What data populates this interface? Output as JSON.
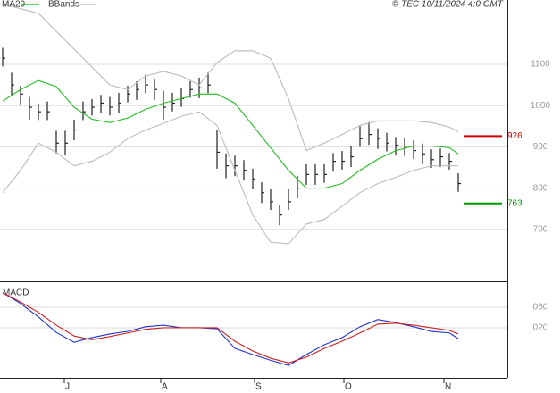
{
  "chart_data": [
    {
      "type": "ohlc",
      "source": "© TEC 10/11/2024 4:0 GMT",
      "x": [
        0,
        1,
        2,
        3,
        4,
        5,
        6,
        7,
        8,
        9,
        10,
        11,
        12,
        13,
        14,
        15,
        16,
        17,
        18,
        19,
        20,
        21,
        22,
        23,
        24,
        25,
        26,
        27,
        28,
        29,
        30,
        31,
        32,
        33,
        34,
        35,
        36,
        37,
        38,
        39,
        40,
        41,
        42,
        43,
        44,
        45,
        46,
        47,
        48,
        49,
        50,
        51
      ],
      "high": [
        1140,
        1080,
        1048,
        1021,
        1005,
        1010,
        939,
        939,
        966,
        1010,
        1016,
        1026,
        1021,
        1031,
        1048,
        1059,
        1075,
        1064,
        1036,
        1031,
        1042,
        1059,
        1068,
        1080,
        942,
        884,
        879,
        868,
        847,
        814,
        797,
        760,
        797,
        830,
        858,
        858,
        858,
        885,
        890,
        901,
        950,
        960,
        945,
        934,
        924,
        923,
        916,
        908,
        894,
        896,
        885,
        836
      ],
      "low": [
        1095,
        1025,
        1003,
        966,
        965,
        965,
        884,
        879,
        916,
        965,
        976,
        981,
        976,
        981,
        1008,
        1014,
        1030,
        1014,
        966,
        986,
        997,
        1019,
        1018,
        1030,
        847,
        824,
        829,
        818,
        797,
        764,
        747,
        710,
        747,
        775,
        808,
        808,
        813,
        840,
        845,
        851,
        900,
        905,
        895,
        889,
        879,
        878,
        871,
        858,
        849,
        851,
        845,
        791
      ],
      "close": [
        1115,
        1050,
        1028,
        996,
        985,
        985,
        909,
        909,
        941,
        985,
        996,
        1006,
        996,
        1006,
        1028,
        1039,
        1050,
        1039,
        996,
        1006,
        1017,
        1039,
        1043,
        1050,
        887,
        854,
        854,
        843,
        822,
        789,
        767,
        735,
        767,
        800,
        833,
        833,
        833,
        865,
        865,
        876,
        920,
        930,
        920,
        909,
        904,
        898,
        891,
        883,
        869,
        876,
        865,
        811
      ],
      "bar_color": "#222",
      "series": [
        {
          "name": "MA20",
          "color": "#22bb22",
          "x": [
            0,
            2,
            4,
            6,
            8,
            10,
            12,
            14,
            16,
            18,
            20,
            22,
            24,
            26,
            28,
            30,
            32,
            34,
            36,
            38,
            40,
            42,
            44,
            46,
            48,
            50,
            51
          ],
          "values": [
            1011,
            1039,
            1061,
            1046,
            996,
            967,
            959,
            970,
            991,
            1006,
            1017,
            1028,
            1028,
            1006,
            952,
            898,
            843,
            800,
            800,
            811,
            843,
            870,
            891,
            902,
            902,
            898,
            883
          ]
        },
        {
          "name": "BBands",
          "color": "#bbbbbb",
          "x": [
            0,
            2,
            4,
            6,
            8,
            10,
            12,
            14,
            16,
            18,
            20,
            22,
            24,
            26,
            28,
            30,
            32,
            34,
            36,
            38,
            40,
            42,
            44,
            46,
            48,
            50,
            51
          ],
          "values": [
            1246,
            1235,
            1224,
            1180,
            1137,
            1093,
            1050,
            1039,
            1072,
            1083,
            1072,
            1050,
            1104,
            1133,
            1133,
            1115,
            1017,
            891,
            909,
            930,
            952,
            963,
            963,
            963,
            959,
            948,
            937
          ],
          "lower": [
            789,
            843,
            909,
            887,
            854,
            865,
            887,
            920,
            941,
            957,
            974,
            985,
            952,
            843,
            735,
            669,
            665,
            713,
            724,
            756,
            789,
            811,
            826,
            843,
            854,
            854,
            854
          ]
        }
      ],
      "levels": [
        {
          "value": 926,
          "color": "#cc0000"
        },
        {
          "value": 763,
          "color": "#009900"
        }
      ],
      "xlim": [
        -0.3,
        56.5
      ],
      "ylim": [
        574,
        1256
      ],
      "yticks": [
        700,
        800,
        900,
        1000,
        1100
      ],
      "grid": true
    },
    {
      "type": "line",
      "title": "MACD",
      "series": [
        {
          "color": "#2233cc",
          "x": [
            0,
            2,
            4,
            6,
            8,
            10,
            12,
            14,
            16,
            18,
            20,
            22,
            24,
            26,
            28,
            30,
            32,
            34,
            36,
            38,
            40,
            42,
            44,
            46,
            48,
            50,
            51
          ],
          "values": [
            88,
            67,
            41,
            11,
            -8,
            1,
            8,
            13,
            22,
            25,
            20,
            20,
            18,
            -20,
            -32,
            -43,
            -53,
            -32,
            -13,
            1,
            22,
            36,
            30,
            22,
            13,
            10,
            -1
          ]
        },
        {
          "color": "#cc2222",
          "x": [
            0,
            2,
            4,
            6,
            8,
            10,
            12,
            14,
            16,
            18,
            20,
            22,
            24,
            26,
            28,
            30,
            32,
            34,
            36,
            38,
            40,
            42,
            44,
            46,
            48,
            50,
            51
          ],
          "values": [
            88,
            70,
            50,
            25,
            4,
            -3,
            3,
            10,
            17,
            20,
            20,
            20,
            20,
            -6,
            -25,
            -39,
            -48,
            -37,
            -20,
            -6,
            10,
            27,
            29,
            25,
            20,
            15,
            8
          ]
        }
      ],
      "xlim": [
        -0.3,
        56.5
      ],
      "ylim": [
        -77,
        110
      ],
      "yticks": [
        {
          "value": 60,
          "label": "060"
        },
        {
          "value": 20,
          "label": "020"
        }
      ],
      "xticks": [
        {
          "value": 6.9,
          "label": "J"
        },
        {
          "value": 17.7,
          "label": "A"
        },
        {
          "value": 28.2,
          "label": "S"
        },
        {
          "value": 38.2,
          "label": "O"
        },
        {
          "value": 49.4,
          "label": "N"
        }
      ],
      "grid": true
    }
  ]
}
